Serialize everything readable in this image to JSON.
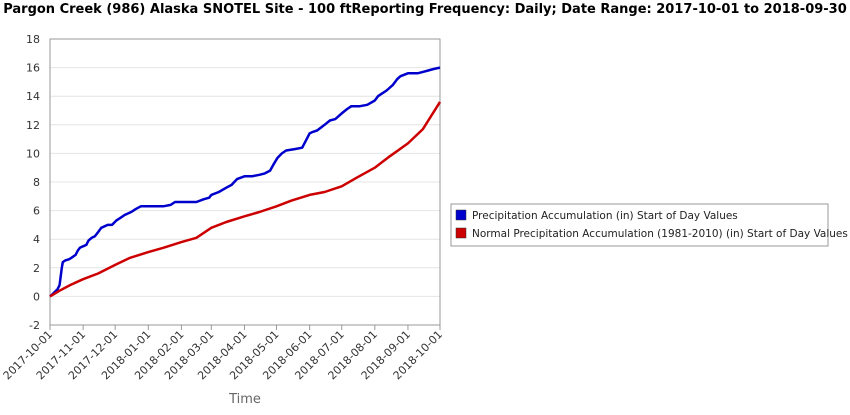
{
  "chart_data": {
    "type": "line",
    "title": "Pargon Creek (986) Alaska  SNOTEL Site - 100 ftReporting Frequency: Daily; Date Range: 2017-10-01 to 2018-09-30",
    "xlabel": "Time",
    "ylabel": "",
    "ylim": [
      -2,
      18
    ],
    "yticks": [
      -2,
      0,
      2,
      4,
      6,
      8,
      10,
      12,
      14,
      16,
      18
    ],
    "xlim": [
      "2017-10-01",
      "2018-10-01"
    ],
    "xticks": [
      "2017-10-01",
      "2017-11-01",
      "2017-12-01",
      "2018-01-01",
      "2018-02-01",
      "2018-03-01",
      "2018-04-01",
      "2018-05-01",
      "2018-06-01",
      "2018-07-01",
      "2018-08-01",
      "2018-09-01",
      "2018-10-01"
    ],
    "grid": "horizontal",
    "legend_position": "right",
    "series": [
      {
        "name": "Precipitation Accumulation (in) Start of Day Values",
        "color": "#0000cc",
        "x": [
          "2017-10-01",
          "2017-10-04",
          "2017-10-08",
          "2017-10-10",
          "2017-10-12",
          "2017-10-13",
          "2017-10-15",
          "2017-10-19",
          "2017-10-21",
          "2017-10-25",
          "2017-10-27",
          "2017-10-29",
          "2017-11-01",
          "2017-11-04",
          "2017-11-06",
          "2017-11-09",
          "2017-11-12",
          "2017-11-15",
          "2017-11-18",
          "2017-11-24",
          "2017-11-28",
          "2017-12-02",
          "2017-12-06",
          "2017-12-10",
          "2017-12-16",
          "2017-12-20",
          "2017-12-25",
          "2018-01-01",
          "2018-01-08",
          "2018-01-15",
          "2018-01-22",
          "2018-01-26",
          "2018-02-01",
          "2018-02-08",
          "2018-02-15",
          "2018-02-22",
          "2018-02-27",
          "2018-03-01",
          "2018-03-08",
          "2018-03-15",
          "2018-03-20",
          "2018-03-25",
          "2018-04-01",
          "2018-04-08",
          "2018-04-15",
          "2018-04-20",
          "2018-04-25",
          "2018-04-28",
          "2018-05-02",
          "2018-05-06",
          "2018-05-10",
          "2018-05-18",
          "2018-05-25",
          "2018-06-01",
          "2018-06-04",
          "2018-06-08",
          "2018-06-15",
          "2018-06-20",
          "2018-06-25",
          "2018-07-01",
          "2018-07-06",
          "2018-07-10",
          "2018-07-18",
          "2018-07-25",
          "2018-08-01",
          "2018-08-04",
          "2018-08-08",
          "2018-08-12",
          "2018-08-18",
          "2018-08-22",
          "2018-08-25",
          "2018-09-01",
          "2018-09-05",
          "2018-09-10",
          "2018-09-15",
          "2018-09-20",
          "2018-09-25",
          "2018-10-01"
        ],
        "values": [
          0.0,
          0.2,
          0.5,
          0.8,
          2.0,
          2.4,
          2.5,
          2.6,
          2.7,
          2.9,
          3.2,
          3.4,
          3.5,
          3.6,
          3.9,
          4.1,
          4.2,
          4.5,
          4.8,
          5.0,
          5.0,
          5.3,
          5.5,
          5.7,
          5.9,
          6.1,
          6.3,
          6.3,
          6.3,
          6.3,
          6.4,
          6.6,
          6.6,
          6.6,
          6.6,
          6.8,
          6.9,
          7.1,
          7.3,
          7.6,
          7.8,
          8.2,
          8.4,
          8.4,
          8.5,
          8.6,
          8.8,
          9.2,
          9.7,
          10.0,
          10.2,
          10.3,
          10.4,
          11.4,
          11.5,
          11.6,
          12.0,
          12.3,
          12.4,
          12.8,
          13.1,
          13.3,
          13.3,
          13.4,
          13.7,
          14.0,
          14.2,
          14.4,
          14.8,
          15.2,
          15.4,
          15.6,
          15.6,
          15.6,
          15.7,
          15.8,
          15.9,
          16.0
        ]
      },
      {
        "name": "Normal Precipitation Accumulation (1981-2010) (in) Start of Day Values",
        "color": "#cc0000",
        "x": [
          "2017-10-01",
          "2017-10-10",
          "2017-10-20",
          "2017-11-01",
          "2017-11-15",
          "2017-12-01",
          "2017-12-15",
          "2018-01-01",
          "2018-01-15",
          "2018-02-01",
          "2018-02-15",
          "2018-03-01",
          "2018-03-15",
          "2018-04-01",
          "2018-04-15",
          "2018-05-01",
          "2018-05-15",
          "2018-06-01",
          "2018-06-15",
          "2018-07-01",
          "2018-07-15",
          "2018-08-01",
          "2018-08-15",
          "2018-09-01",
          "2018-09-15",
          "2018-10-01"
        ],
        "values": [
          0.0,
          0.4,
          0.8,
          1.2,
          1.6,
          2.2,
          2.7,
          3.1,
          3.4,
          3.8,
          4.1,
          4.8,
          5.2,
          5.6,
          5.9,
          6.3,
          6.7,
          7.1,
          7.3,
          7.7,
          8.3,
          9.0,
          9.8,
          10.7,
          11.7,
          13.6
        ]
      }
    ]
  }
}
